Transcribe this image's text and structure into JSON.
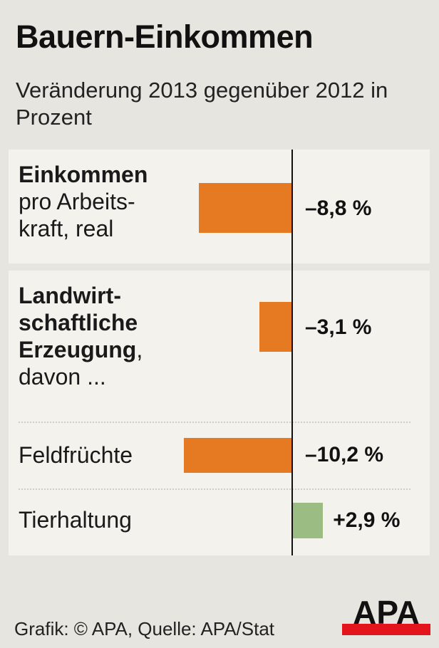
{
  "title": "Bauern-Einkommen",
  "subtitle": "Veränderung 2013 gegenüber 2012 in Prozent",
  "source": "Grafik: © APA, Quelle: APA/Stat",
  "logo": "APA",
  "colors": {
    "negative": "#e67a22",
    "positive": "#9bbd84",
    "logo_red": "#e3141b"
  },
  "chart_data": {
    "type": "bar",
    "orientation": "horizontal",
    "categories": [
      "Einkommen pro Arbeitskraft, real",
      "Landwirtschaftliche Erzeugung, davon ...",
      "Feldfrüchte",
      "Tierhaltung"
    ],
    "values": [
      -8.8,
      -3.1,
      -10.2,
      2.9
    ],
    "value_labels": [
      "–8,8 %",
      "–3,1 %",
      "–10,2 %",
      "+2,9 %"
    ],
    "label_parts": [
      {
        "bold": "Einkommen",
        "rest1": "pro Arbeits-",
        "rest2": "kraft, real"
      },
      {
        "bold1": "Landwirt-",
        "bold2": "schaftliche",
        "bold3": "Erzeugung",
        "tail": ",",
        "rest": "davon ..."
      },
      {
        "text": "Feldfrüchte"
      },
      {
        "text": "Tierhaltung"
      }
    ],
    "unit": "%",
    "grid": false
  }
}
